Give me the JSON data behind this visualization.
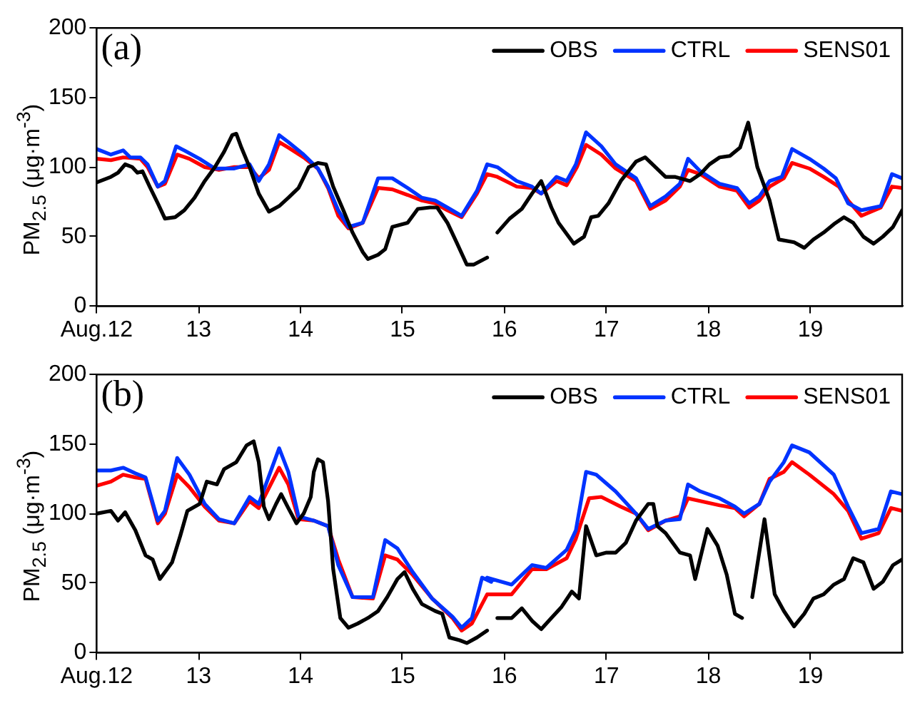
{
  "chart_data": [
    {
      "type": "line",
      "ylabel": "PM$_{2.5}$ (μg·m$^{-3}$)",
      "annotations": [
        "(a)"
      ],
      "legend": "top right",
      "grid": false,
      "marker": "none",
      "xlim": [
        12,
        19.9
      ],
      "xticks": [
        {
          "value": 12,
          "label": "Aug.12"
        },
        13,
        14,
        15,
        16,
        17,
        18,
        19
      ],
      "ylim": [
        0,
        200
      ],
      "yticks": [
        0,
        50,
        100,
        150,
        200
      ],
      "series": [
        {
          "name": "OBS",
          "color": "#000000",
          "x": [
            12.0,
            12.14,
            12.21,
            12.28,
            12.35,
            12.4,
            12.45,
            12.52,
            12.6,
            12.67,
            12.77,
            12.86,
            12.96,
            13.06,
            13.16,
            13.25,
            13.33,
            13.37,
            13.42,
            13.5,
            13.59,
            13.69,
            13.79,
            13.88,
            13.98,
            14.08,
            14.17,
            14.25,
            14.32,
            14.42,
            14.51,
            14.61,
            14.66,
            14.76,
            14.83,
            14.9,
            15.05,
            15.15,
            15.27,
            15.34,
            15.44,
            15.53,
            15.63,
            15.7,
            15.83,
            15.88,
            15.93,
            16.05,
            16.17,
            16.27,
            16.36,
            16.46,
            16.53,
            16.68,
            16.78,
            16.85,
            16.92,
            17.02,
            17.14,
            17.29,
            17.38,
            17.48,
            17.58,
            17.67,
            17.82,
            17.92,
            18.01,
            18.11,
            18.21,
            18.31,
            18.35,
            18.39,
            18.43,
            18.48,
            18.6,
            18.69,
            18.84,
            18.94,
            19.03,
            19.13,
            19.23,
            19.33,
            19.42,
            19.52,
            19.62,
            19.71,
            19.81,
            19.9
          ],
          "values": [
            89,
            93,
            96,
            102,
            100,
            96,
            97,
            86,
            74,
            63,
            64,
            69,
            78,
            90,
            100,
            111,
            123,
            124,
            114,
            100,
            81,
            68,
            72,
            78,
            85,
            100,
            103,
            102,
            86,
            69,
            53,
            39,
            34,
            37,
            41,
            57,
            60,
            70,
            71,
            71,
            60,
            46,
            30,
            30,
            35,
            null,
            53,
            63,
            70,
            81,
            90,
            71,
            60,
            45,
            50,
            64,
            65,
            74,
            90,
            104,
            107,
            100,
            93,
            93,
            90,
            95,
            102,
            107,
            108,
            114,
            123,
            132,
            118,
            100,
            76,
            48,
            46,
            42,
            48,
            53,
            59,
            64,
            60,
            50,
            45,
            50,
            57,
            69
          ]
        },
        {
          "name": "CTRL",
          "color": "#0033ff",
          "x": [
            12.0,
            12.14,
            12.26,
            12.33,
            12.43,
            12.5,
            12.6,
            12.67,
            12.78,
            12.86,
            13.01,
            13.16,
            13.35,
            13.5,
            13.59,
            13.69,
            13.79,
            13.88,
            14.03,
            14.17,
            14.27,
            14.37,
            14.47,
            14.61,
            14.76,
            14.9,
            15.05,
            15.19,
            15.32,
            15.44,
            15.58,
            15.73,
            15.83,
            15.93,
            16.12,
            16.27,
            16.36,
            16.51,
            16.61,
            16.7,
            16.8,
            16.95,
            17.09,
            17.29,
            17.43,
            17.58,
            17.72,
            17.8,
            17.92,
            18.11,
            18.28,
            18.4,
            18.5,
            18.6,
            18.72,
            18.82,
            18.99,
            19.13,
            19.25,
            19.37,
            19.5,
            19.69,
            19.8,
            19.9
          ],
          "values": [
            113,
            109,
            112,
            107,
            107,
            102,
            86,
            90,
            115,
            112,
            106,
            99,
            99,
            102,
            90,
            102,
            123,
            118,
            109,
            99,
            86,
            69,
            57,
            60,
            92,
            92,
            85,
            78,
            76,
            71,
            65,
            83,
            102,
            100,
            90,
            86,
            81,
            93,
            90,
            102,
            125,
            115,
            102,
            92,
            72,
            79,
            88,
            106,
            97,
            88,
            85,
            74,
            79,
            90,
            93,
            113,
            106,
            99,
            92,
            74,
            69,
            72,
            95,
            92
          ]
        },
        {
          "name": "SENS01",
          "color": "#ff0000",
          "x": [
            12.0,
            12.14,
            12.26,
            12.43,
            12.5,
            12.6,
            12.67,
            12.79,
            12.91,
            13.06,
            13.2,
            13.35,
            13.5,
            13.59,
            13.69,
            13.79,
            13.88,
            14.03,
            14.17,
            14.27,
            14.37,
            14.47,
            14.61,
            14.76,
            14.9,
            15.05,
            15.19,
            15.32,
            15.44,
            15.58,
            15.73,
            15.83,
            15.93,
            16.12,
            16.27,
            16.36,
            16.51,
            16.61,
            16.71,
            16.8,
            16.95,
            17.09,
            17.29,
            17.43,
            17.58,
            17.72,
            17.8,
            17.92,
            18.11,
            18.28,
            18.4,
            18.5,
            18.6,
            18.74,
            18.82,
            18.99,
            19.13,
            19.28,
            19.37,
            19.5,
            19.69,
            19.8,
            19.9
          ],
          "values": [
            106,
            105,
            107,
            106,
            100,
            86,
            88,
            109,
            106,
            100,
            98,
            100,
            100,
            92,
            98,
            118,
            114,
            107,
            99,
            85,
            65,
            56,
            60,
            85,
            84,
            80,
            76,
            74,
            69,
            64,
            81,
            95,
            93,
            86,
            85,
            81,
            90,
            87,
            100,
            116,
            109,
            99,
            90,
            70,
            76,
            86,
            98,
            95,
            86,
            83,
            71,
            76,
            86,
            92,
            103,
            99,
            93,
            86,
            76,
            65,
            71,
            86,
            85
          ]
        }
      ]
    },
    {
      "type": "line",
      "ylabel": "PM$_{2.5}$ (μg·m$^{-3}$)",
      "annotations": [
        "(b)"
      ],
      "legend": "top right",
      "grid": false,
      "marker": "none",
      "xlim": [
        12,
        19.9
      ],
      "xticks": [
        {
          "value": 12,
          "label": "Aug.12"
        },
        13,
        14,
        15,
        16,
        17,
        18,
        19
      ],
      "ylim": [
        0,
        200
      ],
      "yticks": [
        0,
        50,
        100,
        150,
        200
      ],
      "series": [
        {
          "name": "OBS",
          "color": "#000000",
          "x": [
            12.0,
            12.14,
            12.21,
            12.28,
            12.38,
            12.48,
            12.55,
            12.62,
            12.69,
            12.74,
            12.82,
            12.89,
            13.01,
            13.08,
            13.18,
            13.25,
            13.37,
            13.47,
            13.54,
            13.59,
            13.64,
            13.69,
            13.76,
            13.81,
            13.88,
            13.96,
            14.03,
            14.1,
            14.13,
            14.17,
            14.22,
            14.27,
            14.32,
            14.39,
            14.47,
            14.56,
            14.66,
            14.76,
            14.85,
            14.95,
            15.02,
            15.1,
            15.19,
            15.32,
            15.39,
            15.46,
            15.56,
            15.63,
            15.73,
            15.83,
            15.88,
            15.93,
            16.07,
            16.17,
            16.27,
            16.36,
            16.46,
            16.56,
            16.66,
            16.73,
            16.8,
            16.9,
            17.0,
            17.09,
            17.19,
            17.29,
            17.41,
            17.46,
            17.5,
            17.58,
            17.72,
            17.82,
            17.87,
            17.99,
            18.09,
            18.18,
            18.26,
            18.33,
            18.38,
            18.43,
            18.55,
            18.65,
            18.74,
            18.84,
            18.94,
            19.03,
            19.13,
            19.23,
            19.33,
            19.42,
            19.52,
            19.62,
            19.71,
            19.81,
            19.9
          ],
          "values": [
            100,
            102,
            95,
            101,
            88,
            70,
            67,
            53,
            60,
            65,
            84,
            102,
            107,
            123,
            121,
            132,
            137,
            149,
            152,
            137,
            105,
            96,
            107,
            114,
            104,
            93,
            100,
            112,
            130,
            139,
            137,
            109,
            60,
            25,
            18,
            21,
            25,
            30,
            40,
            53,
            58,
            46,
            35,
            30,
            28,
            11,
            9,
            7,
            11,
            16,
            null,
            25,
            25,
            32,
            23,
            17,
            25,
            33,
            44,
            39,
            91,
            70,
            72,
            72,
            79,
            95,
            107,
            107,
            91,
            86,
            72,
            70,
            53,
            89,
            77,
            56,
            28,
            25,
            null,
            40,
            96,
            42,
            30,
            19,
            28,
            39,
            42,
            49,
            53,
            68,
            65,
            46,
            51,
            63,
            67
          ]
        },
        {
          "name": "CTRL",
          "color": "#0033ff",
          "x": [
            12.0,
            12.14,
            12.26,
            12.38,
            12.48,
            12.6,
            12.67,
            12.79,
            12.91,
            13.06,
            13.2,
            13.35,
            13.5,
            13.59,
            13.79,
            13.88,
            13.98,
            14.13,
            14.27,
            14.37,
            14.51,
            14.71,
            14.83,
            14.95,
            15.1,
            15.29,
            15.49,
            15.58,
            15.68,
            15.78,
            15.87,
            15.83,
            16.07,
            16.27,
            16.41,
            16.61,
            16.7,
            16.8,
            16.9,
            17.09,
            17.29,
            17.41,
            17.58,
            17.72,
            17.8,
            17.92,
            18.11,
            18.26,
            18.35,
            18.5,
            18.6,
            18.74,
            18.82,
            18.99,
            19.23,
            19.37,
            19.5,
            19.67,
            19.79,
            19.9
          ],
          "values": [
            131,
            131,
            133,
            129,
            126,
            95,
            102,
            140,
            128,
            107,
            96,
            93,
            112,
            107,
            147,
            130,
            98,
            95,
            91,
            63,
            40,
            40,
            81,
            75,
            58,
            39,
            26,
            18,
            25,
            54,
            51,
            54,
            49,
            63,
            61,
            74,
            88,
            130,
            128,
            116,
            100,
            89,
            95,
            96,
            121,
            116,
            111,
            105,
            100,
            107,
            123,
            137,
            149,
            144,
            128,
            105,
            86,
            89,
            116,
            114
          ]
        },
        {
          "name": "SENS01",
          "color": "#ff0000",
          "x": [
            12.0,
            12.14,
            12.26,
            12.38,
            12.48,
            12.6,
            12.67,
            12.79,
            12.91,
            13.06,
            13.2,
            13.35,
            13.5,
            13.59,
            13.79,
            13.88,
            13.98,
            14.13,
            14.27,
            14.37,
            14.51,
            14.71,
            14.83,
            14.95,
            15.1,
            15.29,
            15.49,
            15.58,
            15.68,
            15.83,
            15.92,
            16.07,
            16.27,
            16.41,
            16.61,
            16.7,
            16.83,
            16.95,
            17.14,
            17.29,
            17.41,
            17.58,
            17.72,
            17.8,
            17.92,
            18.11,
            18.26,
            18.35,
            18.5,
            18.6,
            18.74,
            18.82,
            18.99,
            19.23,
            19.37,
            19.5,
            19.67,
            19.79,
            19.9
          ],
          "values": [
            120,
            123,
            128,
            126,
            125,
            93,
            100,
            128,
            119,
            105,
            95,
            93,
            109,
            104,
            133,
            121,
            96,
            95,
            91,
            67,
            40,
            39,
            70,
            67,
            56,
            39,
            25,
            16,
            21,
            42,
            42,
            42,
            60,
            60,
            68,
            82,
            111,
            112,
            105,
            100,
            88,
            95,
            98,
            111,
            109,
            106,
            104,
            98,
            107,
            125,
            130,
            137,
            128,
            114,
            102,
            82,
            86,
            104,
            102
          ]
        }
      ]
    }
  ]
}
